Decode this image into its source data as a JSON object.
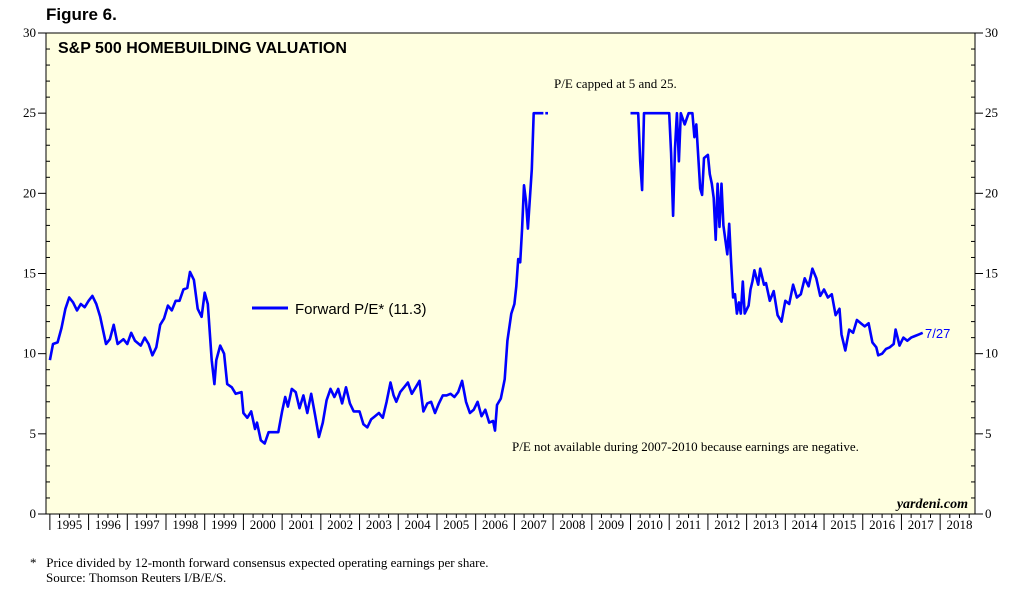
{
  "figure_label": "Figure 6.",
  "footnote": {
    "marker": "*",
    "text": "Price divided by 12-month forward consensus expected operating earnings per share.",
    "source": "Source: Thomson Reuters I/B/E/S."
  },
  "colors": {
    "plot_background": "#ffffe0",
    "series": "#0000ff",
    "text": "#000000"
  },
  "chart_data": {
    "type": "line",
    "title": "S&P 500 HOMEBUILDING VALUATION",
    "xlabel": "",
    "ylabel": "",
    "xlim": [
      1994.9,
      2018.9
    ],
    "ylim": [
      0,
      30
    ],
    "yticks": [
      0,
      5,
      10,
      15,
      20,
      25,
      30
    ],
    "year_labels": [
      "1995",
      "1996",
      "1997",
      "1998",
      "1999",
      "2000",
      "2001",
      "2002",
      "2003",
      "2004",
      "2005",
      "2006",
      "2007",
      "2008",
      "2009",
      "2010",
      "2011",
      "2012",
      "2013",
      "2014",
      "2015",
      "2016",
      "2017",
      "2018"
    ],
    "legend": {
      "label": "Forward P/E* (11.3)",
      "position": "center-left"
    },
    "end_label": "7/27",
    "annotations": {
      "cap_note": "P/E capped at 5 and 25.",
      "gap_note": "P/E not available during 2007-2010 because earnings are negative.",
      "watermark": "yardeni.com"
    },
    "series": [
      {
        "name": "Forward P/E*",
        "segments": [
          [
            [
              1995.0,
              9.6
            ],
            [
              1995.08,
              10.6
            ],
            [
              1995.2,
              10.7
            ],
            [
              1995.3,
              11.6
            ],
            [
              1995.4,
              12.8
            ],
            [
              1995.5,
              13.5
            ],
            [
              1995.6,
              13.2
            ],
            [
              1995.7,
              12.7
            ],
            [
              1995.8,
              13.1
            ],
            [
              1995.9,
              12.9
            ],
            [
              1996.0,
              13.3
            ],
            [
              1996.1,
              13.6
            ],
            [
              1996.2,
              13.1
            ],
            [
              1996.3,
              12.3
            ],
            [
              1996.45,
              10.6
            ],
            [
              1996.55,
              10.9
            ],
            [
              1996.65,
              11.8
            ],
            [
              1996.75,
              10.6
            ],
            [
              1996.9,
              10.9
            ],
            [
              1997.0,
              10.6
            ],
            [
              1997.1,
              11.3
            ],
            [
              1997.2,
              10.8
            ],
            [
              1997.35,
              10.5
            ],
            [
              1997.45,
              11.0
            ],
            [
              1997.55,
              10.6
            ],
            [
              1997.65,
              9.9
            ],
            [
              1997.75,
              10.4
            ],
            [
              1997.85,
              11.8
            ],
            [
              1997.95,
              12.2
            ],
            [
              1998.05,
              13.0
            ],
            [
              1998.15,
              12.7
            ],
            [
              1998.25,
              13.3
            ],
            [
              1998.35,
              13.3
            ],
            [
              1998.45,
              14.0
            ],
            [
              1998.55,
              14.1
            ],
            [
              1998.62,
              15.1
            ],
            [
              1998.72,
              14.6
            ],
            [
              1998.82,
              12.8
            ],
            [
              1998.92,
              12.3
            ],
            [
              1999.0,
              13.8
            ],
            [
              1999.08,
              13.1
            ],
            [
              1999.18,
              9.6
            ],
            [
              1999.25,
              8.1
            ],
            [
              1999.3,
              9.6
            ],
            [
              1999.4,
              10.5
            ],
            [
              1999.5,
              10.0
            ],
            [
              1999.58,
              8.1
            ],
            [
              1999.7,
              7.9
            ],
            [
              1999.8,
              7.5
            ],
            [
              1999.95,
              7.6
            ],
            [
              2000.0,
              6.3
            ],
            [
              2000.1,
              6.0
            ],
            [
              2000.2,
              6.4
            ],
            [
              2000.3,
              5.3
            ],
            [
              2000.35,
              5.7
            ],
            [
              2000.45,
              4.6
            ],
            [
              2000.55,
              4.4
            ],
            [
              2000.65,
              5.1
            ],
            [
              2000.8,
              5.1
            ],
            [
              2000.9,
              5.1
            ],
            [
              2001.0,
              6.4
            ],
            [
              2001.08,
              7.3
            ],
            [
              2001.15,
              6.7
            ],
            [
              2001.25,
              7.8
            ],
            [
              2001.35,
              7.6
            ],
            [
              2001.45,
              6.6
            ],
            [
              2001.55,
              7.4
            ],
            [
              2001.65,
              6.3
            ],
            [
              2001.75,
              7.5
            ],
            [
              2001.85,
              6.2
            ],
            [
              2001.95,
              4.8
            ],
            [
              2002.05,
              5.7
            ],
            [
              2002.15,
              7.1
            ],
            [
              2002.25,
              7.8
            ],
            [
              2002.35,
              7.3
            ],
            [
              2002.45,
              7.8
            ],
            [
              2002.55,
              6.9
            ],
            [
              2002.65,
              7.9
            ],
            [
              2002.75,
              6.9
            ],
            [
              2002.85,
              6.4
            ],
            [
              2002.95,
              6.4
            ],
            [
              2003.0,
              6.4
            ],
            [
              2003.1,
              5.6
            ],
            [
              2003.2,
              5.4
            ],
            [
              2003.3,
              5.9
            ],
            [
              2003.4,
              6.1
            ],
            [
              2003.5,
              6.3
            ],
            [
              2003.6,
              6.0
            ],
            [
              2003.7,
              7.0
            ],
            [
              2003.8,
              8.2
            ],
            [
              2003.88,
              7.4
            ],
            [
              2003.95,
              7.0
            ],
            [
              2004.05,
              7.6
            ],
            [
              2004.15,
              7.9
            ],
            [
              2004.25,
              8.2
            ],
            [
              2004.35,
              7.5
            ],
            [
              2004.45,
              7.9
            ],
            [
              2004.55,
              8.3
            ],
            [
              2004.65,
              6.4
            ],
            [
              2004.75,
              6.9
            ],
            [
              2004.85,
              7.0
            ],
            [
              2004.95,
              6.3
            ],
            [
              2005.05,
              6.9
            ],
            [
              2005.15,
              7.4
            ],
            [
              2005.25,
              7.4
            ],
            [
              2005.35,
              7.5
            ],
            [
              2005.45,
              7.3
            ],
            [
              2005.55,
              7.6
            ],
            [
              2005.65,
              8.3
            ],
            [
              2005.75,
              7.0
            ],
            [
              2005.85,
              6.3
            ],
            [
              2005.95,
              6.5
            ],
            [
              2006.05,
              7.0
            ],
            [
              2006.15,
              6.1
            ],
            [
              2006.25,
              6.5
            ],
            [
              2006.35,
              5.7
            ],
            [
              2006.45,
              5.8
            ],
            [
              2006.5,
              5.2
            ],
            [
              2006.55,
              6.8
            ],
            [
              2006.65,
              7.2
            ],
            [
              2006.75,
              8.4
            ],
            [
              2006.82,
              10.8
            ],
            [
              2006.92,
              12.5
            ],
            [
              2007.0,
              13.1
            ],
            [
              2007.05,
              14.2
            ],
            [
              2007.1,
              15.9
            ],
            [
              2007.15,
              15.7
            ],
            [
              2007.2,
              17.8
            ],
            [
              2007.25,
              20.5
            ],
            [
              2007.3,
              19.5
            ],
            [
              2007.35,
              17.8
            ],
            [
              2007.45,
              21.5
            ],
            [
              2007.5,
              25.0
            ],
            [
              2007.75,
              25.0
            ]
          ],
          [
            [
              2007.8,
              25.0
            ],
            [
              2007.87,
              25.0
            ]
          ],
          [
            [
              2010.0,
              25.0
            ],
            [
              2010.2,
              25.0
            ],
            [
              2010.25,
              22.0
            ],
            [
              2010.3,
              20.2
            ],
            [
              2010.35,
              25.0
            ],
            [
              2011.0,
              25.0
            ],
            [
              2011.05,
              22.5
            ],
            [
              2011.1,
              18.6
            ],
            [
              2011.15,
              22.8
            ],
            [
              2011.2,
              25.0
            ],
            [
              2011.25,
              22.0
            ],
            [
              2011.3,
              25.0
            ],
            [
              2011.4,
              24.3
            ],
            [
              2011.5,
              25.0
            ],
            [
              2011.6,
              25.0
            ],
            [
              2011.65,
              23.5
            ],
            [
              2011.7,
              24.3
            ],
            [
              2011.8,
              20.3
            ],
            [
              2011.85,
              19.9
            ],
            [
              2011.9,
              22.2
            ],
            [
              2012.0,
              22.4
            ],
            [
              2012.05,
              21.2
            ],
            [
              2012.1,
              20.6
            ],
            [
              2012.15,
              19.7
            ],
            [
              2012.2,
              17.1
            ],
            [
              2012.25,
              20.6
            ],
            [
              2012.3,
              17.9
            ],
            [
              2012.35,
              20.6
            ],
            [
              2012.4,
              18.0
            ],
            [
              2012.5,
              16.2
            ],
            [
              2012.55,
              18.1
            ],
            [
              2012.6,
              15.7
            ],
            [
              2012.65,
              13.5
            ],
            [
              2012.7,
              13.7
            ],
            [
              2012.75,
              12.5
            ],
            [
              2012.8,
              13.2
            ],
            [
              2012.85,
              12.5
            ],
            [
              2012.9,
              14.5
            ],
            [
              2012.95,
              12.5
            ],
            [
              2013.05,
              13.0
            ],
            [
              2013.1,
              14.0
            ],
            [
              2013.15,
              14.5
            ],
            [
              2013.2,
              15.2
            ],
            [
              2013.3,
              14.3
            ],
            [
              2013.35,
              15.3
            ],
            [
              2013.45,
              14.3
            ],
            [
              2013.5,
              14.4
            ],
            [
              2013.6,
              13.3
            ],
            [
              2013.7,
              13.9
            ],
            [
              2013.8,
              12.4
            ],
            [
              2013.9,
              12.0
            ],
            [
              2014.0,
              13.3
            ],
            [
              2014.1,
              13.1
            ],
            [
              2014.2,
              14.3
            ],
            [
              2014.3,
              13.5
            ],
            [
              2014.4,
              13.7
            ],
            [
              2014.5,
              14.7
            ],
            [
              2014.6,
              14.2
            ],
            [
              2014.7,
              15.3
            ],
            [
              2014.8,
              14.7
            ],
            [
              2014.9,
              13.6
            ],
            [
              2015.0,
              14.0
            ],
            [
              2015.1,
              13.5
            ],
            [
              2015.2,
              13.7
            ],
            [
              2015.3,
              12.4
            ],
            [
              2015.4,
              12.8
            ],
            [
              2015.45,
              11.2
            ],
            [
              2015.55,
              10.2
            ],
            [
              2015.65,
              11.5
            ],
            [
              2015.75,
              11.3
            ],
            [
              2015.85,
              12.1
            ],
            [
              2015.95,
              11.9
            ],
            [
              2016.05,
              11.7
            ],
            [
              2016.15,
              11.9
            ],
            [
              2016.25,
              10.7
            ],
            [
              2016.35,
              10.4
            ],
            [
              2016.4,
              9.9
            ],
            [
              2016.5,
              10.0
            ],
            [
              2016.6,
              10.3
            ],
            [
              2016.7,
              10.4
            ],
            [
              2016.8,
              10.6
            ],
            [
              2016.85,
              11.5
            ],
            [
              2016.9,
              11.0
            ],
            [
              2016.95,
              10.5
            ],
            [
              2017.05,
              11.0
            ],
            [
              2017.15,
              10.8
            ],
            [
              2017.25,
              11.0
            ],
            [
              2017.35,
              11.1
            ],
            [
              2017.45,
              11.2
            ],
            [
              2017.55,
              11.3
            ]
          ]
        ]
      }
    ]
  }
}
